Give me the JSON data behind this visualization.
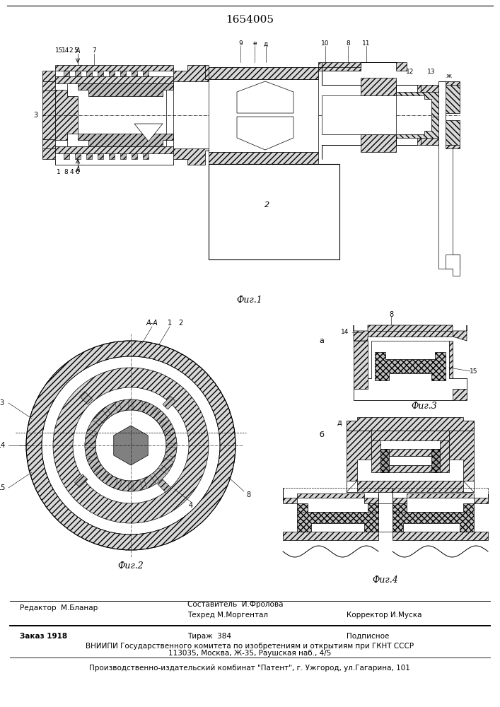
{
  "patent_number": "1654005",
  "bg_color": "#ffffff",
  "line_color": "#000000",
  "fig_width": 7.07,
  "fig_height": 10.0,
  "dpi": 100,
  "editor_text": "Редактор  М.Бланар",
  "sostavitel_text": "Составитель  И.Фролова",
  "tehred_text": "Техред М.Моргентал",
  "korrektor_text": "Корректор И.Муска",
  "zakaz_text": "Заказ 1918",
  "tirazh_text": "Тираж  384",
  "podpisnoe_text": "Подписное",
  "vniip_text": "ВНИИПИ Государственного комитета по изобретениям и открытиям при ГКНТ СССР",
  "address_text": "113035, Москва, Ж-35, Раушская наб., 4/5",
  "proizv_text": "Производственно-издательский комбинат \"Патент\", г. Ужгород, ул.Гагарина, 101",
  "fig1_label": "Фиг.1",
  "fig2_label": "Фиг.2",
  "fig3_label": "Фиг.3",
  "fig4_label": "Фиг.4"
}
